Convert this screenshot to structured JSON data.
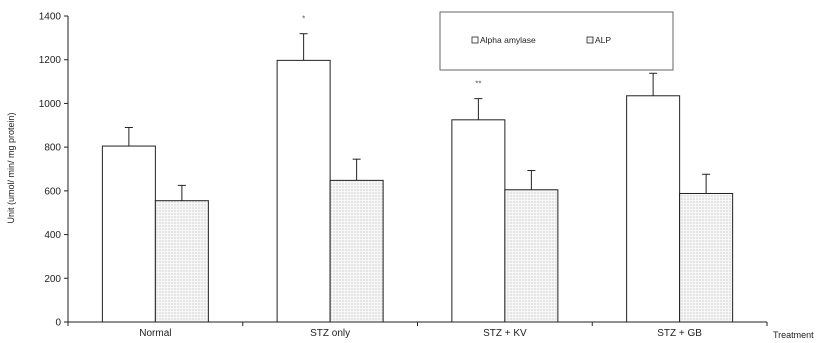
{
  "chart_data": {
    "type": "bar",
    "categories": [
      "Normal",
      "STZ only",
      "STZ + KV",
      "STZ + GB"
    ],
    "series": [
      {
        "name": "Alpha amylase",
        "values": [
          805,
          1197,
          925,
          1035
        ],
        "errors": [
          85,
          122,
          97,
          103
        ],
        "fill": "#ffffff"
      },
      {
        "name": "ALP",
        "values": [
          555,
          648,
          605,
          588
        ],
        "errors": [
          70,
          97,
          88,
          88
        ],
        "fill": "#efefef"
      }
    ],
    "significance": [
      {
        "category_index": 1,
        "series_index": 0,
        "label": "*"
      },
      {
        "category_index": 2,
        "series_index": 0,
        "label": "**"
      },
      {
        "category_index": 3,
        "series_index": 0,
        "label": "*"
      }
    ],
    "title": "",
    "xlabel": "Treatment",
    "ylabel": "Unit (umol/ min/ mg protein)",
    "ylim": [
      0,
      1400
    ],
    "yticks": [
      0,
      200,
      400,
      600,
      800,
      1000,
      1200,
      1400
    ],
    "grid": false,
    "legend_position": "top-right"
  }
}
